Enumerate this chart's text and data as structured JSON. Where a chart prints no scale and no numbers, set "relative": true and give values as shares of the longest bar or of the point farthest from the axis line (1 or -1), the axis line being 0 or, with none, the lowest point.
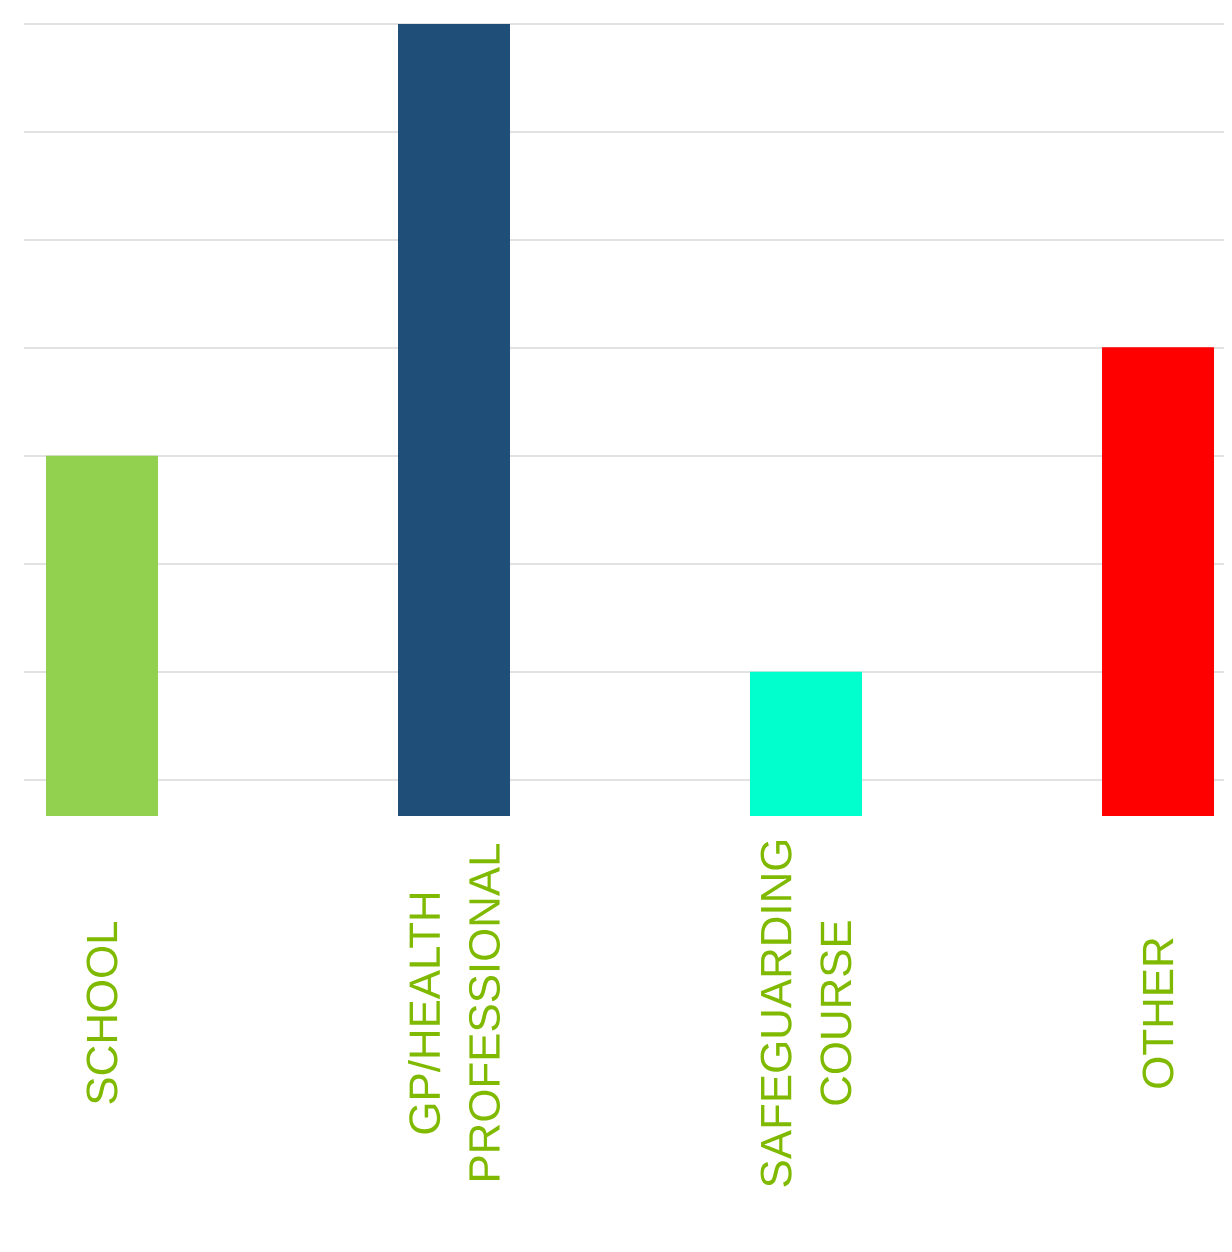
{
  "chart_data": {
    "type": "bar",
    "relative": true,
    "grid": "y",
    "categories": [
      "SCHOOL",
      "GP/HEALTH PROFESSIONAL",
      "SAFEGUARDING COURSE",
      "OTHER"
    ],
    "values": [
      0.455,
      1,
      0.182,
      0.592
    ],
    "colors": [
      "#92d050",
      "#1f4e79",
      "#00ffcc",
      "#ff0000"
    ]
  }
}
